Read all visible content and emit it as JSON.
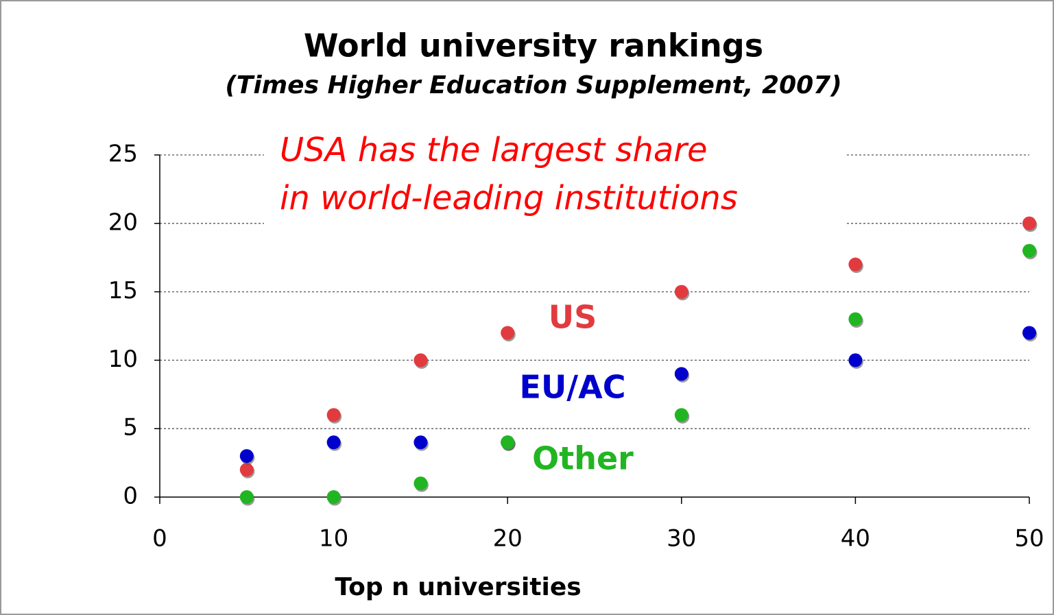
{
  "chart_data": {
    "type": "scatter",
    "title": "World university rankings",
    "subtitle": "(Times Higher Education Supplement, 2007)",
    "annotation": [
      "USA has the largest share",
      "in world-leading institutions"
    ],
    "xlabel": "Top n universities",
    "x": [
      5,
      10,
      15,
      20,
      30,
      40,
      50
    ],
    "series": [
      {
        "name": "US",
        "color": "#e23b3f",
        "values": [
          2,
          6,
          10,
          12,
          15,
          17,
          20
        ]
      },
      {
        "name": "EU/AC",
        "color": "#0000cc",
        "values": [
          3,
          4,
          4,
          4,
          9,
          10,
          12
        ]
      },
      {
        "name": "Other",
        "color": "#22b522",
        "values": [
          0,
          0,
          1,
          4,
          6,
          13,
          18
        ]
      }
    ],
    "xlim": [
      0,
      50
    ],
    "xticks": [
      0,
      10,
      20,
      30,
      40,
      50
    ],
    "ylim": [
      0,
      25
    ],
    "yticks": [
      0,
      5,
      10,
      15,
      20,
      25
    ],
    "grid": true
  }
}
